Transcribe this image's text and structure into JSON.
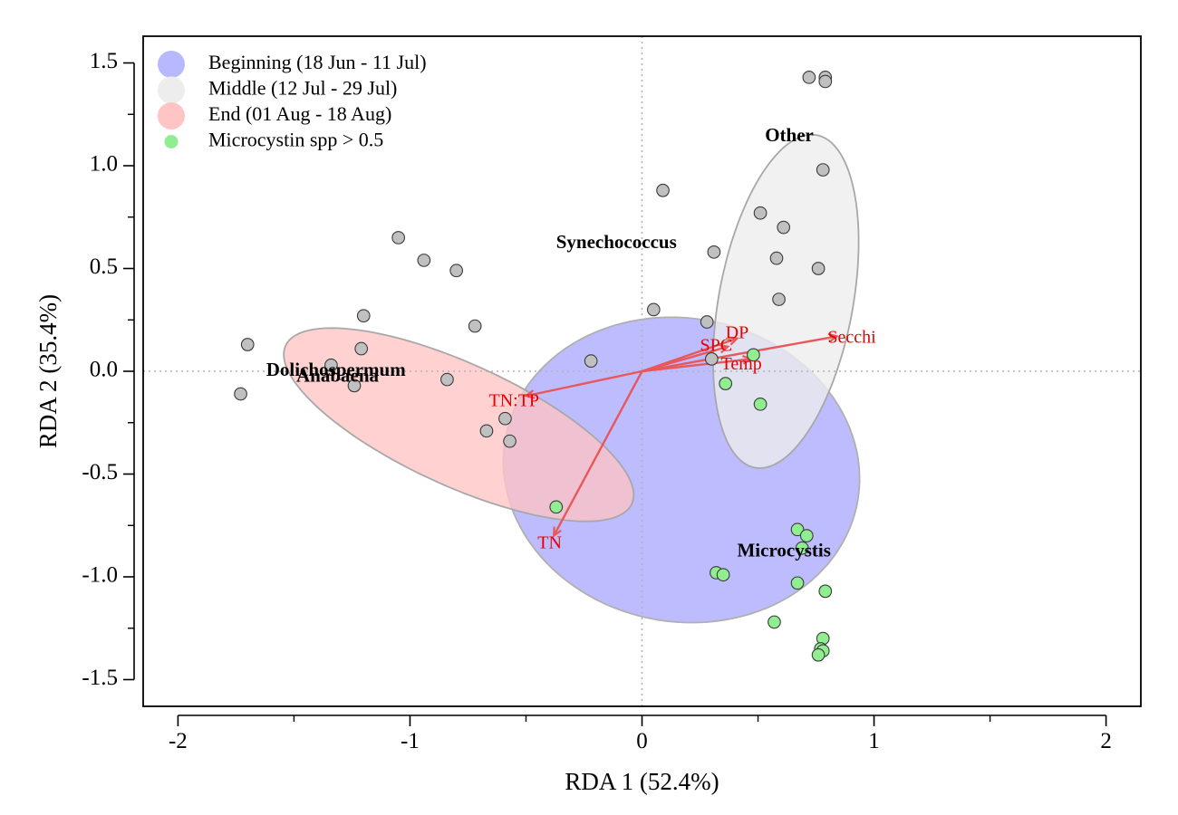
{
  "chart_data": {
    "type": "scatter",
    "xlabel": "RDA 1 (52.4%)",
    "ylabel": "RDA 2 (35.4%)",
    "xlim": [
      -2.15,
      2.15
    ],
    "ylim": [
      -1.63,
      1.63
    ],
    "x_ticks": [
      -2,
      -1,
      0,
      1,
      2
    ],
    "x_tick_labels": [
      "-2",
      "-1",
      "0",
      "1",
      "2"
    ],
    "x_minor_ticks": [
      -1.5,
      -0.5,
      0.5,
      1.5
    ],
    "y_ticks": [
      -1.5,
      -1.0,
      -0.5,
      0.0,
      0.5,
      1.0,
      1.5
    ],
    "y_tick_labels": [
      "-1.5",
      "-1.0",
      "-0.5",
      "0.0",
      "0.5",
      "1.0",
      "1.5"
    ],
    "y_minor_ticks": [
      -1.25,
      -0.75,
      -0.25,
      0.25,
      0.75,
      1.25
    ],
    "reference_lines": {
      "x": 0,
      "y": 0,
      "style": "dotted"
    },
    "legend": {
      "placement": "top-left",
      "entries": [
        {
          "label": "Beginning (18 Jun - 11 Jul)",
          "color": "#b8b8ff",
          "marker": "large-circle"
        },
        {
          "label": "Middle (12 Jul - 29 Jul)",
          "color": "#ededed",
          "marker": "large-circle"
        },
        {
          "label": "End (01 Aug - 18 Aug)",
          "color": "#ffc4c4",
          "marker": "large-circle"
        },
        {
          "label": "Microcystin spp > 0.5",
          "color": "#90ee90",
          "marker": "small-circle"
        }
      ]
    },
    "ellipses": [
      {
        "group": "Beginning (18 Jun - 11 Jul)",
        "center": [
          0.17,
          -0.48
        ],
        "semi_axes": [
          0.78,
          0.73
        ],
        "rotation_deg": -30,
        "fill": "#b8b8ff",
        "stroke": "#b0b0b0"
      },
      {
        "group": "End (01 Aug - 18 Aug)",
        "center": [
          -0.79,
          -0.26
        ],
        "semi_axes": [
          0.84,
          0.29
        ],
        "rotation_deg": -28,
        "fill": "#ffc4c4",
        "stroke": "#a8a8a8"
      },
      {
        "group": "Middle (12 Jul - 29 Jul)",
        "center": [
          0.62,
          0.34
        ],
        "semi_axes": [
          0.82,
          0.29
        ],
        "rotation_deg": 81,
        "fill": "#ededed",
        "stroke": "#a8a8a8"
      }
    ],
    "sites": [
      {
        "x": 0.72,
        "y": 1.43,
        "microcystin": false
      },
      {
        "x": 0.79,
        "y": 1.43,
        "microcystin": false
      },
      {
        "x": 0.79,
        "y": 1.41,
        "microcystin": false
      },
      {
        "x": 0.78,
        "y": 0.98,
        "microcystin": false
      },
      {
        "x": 0.09,
        "y": 0.88,
        "microcystin": false
      },
      {
        "x": 0.51,
        "y": 0.77,
        "microcystin": false
      },
      {
        "x": 0.61,
        "y": 0.7,
        "microcystin": false
      },
      {
        "x": 0.31,
        "y": 0.58,
        "microcystin": false
      },
      {
        "x": 0.58,
        "y": 0.55,
        "microcystin": false
      },
      {
        "x": 0.76,
        "y": 0.5,
        "microcystin": false
      },
      {
        "x": 0.59,
        "y": 0.35,
        "microcystin": false
      },
      {
        "x": 0.05,
        "y": 0.3,
        "microcystin": false
      },
      {
        "x": 0.28,
        "y": 0.24,
        "microcystin": false
      },
      {
        "x": 0.3,
        "y": 0.06,
        "microcystin": false
      },
      {
        "x": -0.22,
        "y": 0.05,
        "microcystin": false
      },
      {
        "x": -1.05,
        "y": 0.65,
        "microcystin": false
      },
      {
        "x": -0.94,
        "y": 0.54,
        "microcystin": false
      },
      {
        "x": -0.8,
        "y": 0.49,
        "microcystin": false
      },
      {
        "x": -1.2,
        "y": 0.27,
        "microcystin": false
      },
      {
        "x": -0.72,
        "y": 0.22,
        "microcystin": false
      },
      {
        "x": -1.7,
        "y": 0.13,
        "microcystin": false
      },
      {
        "x": -1.21,
        "y": 0.11,
        "microcystin": false
      },
      {
        "x": -1.34,
        "y": 0.03,
        "microcystin": false
      },
      {
        "x": -1.24,
        "y": -0.07,
        "microcystin": false
      },
      {
        "x": -0.84,
        "y": -0.04,
        "microcystin": false
      },
      {
        "x": -1.73,
        "y": -0.11,
        "microcystin": false
      },
      {
        "x": -0.59,
        "y": -0.23,
        "microcystin": false
      },
      {
        "x": -0.67,
        "y": -0.29,
        "microcystin": false
      },
      {
        "x": -0.57,
        "y": -0.34,
        "microcystin": false
      },
      {
        "x": 0.48,
        "y": 0.08,
        "microcystin": true
      },
      {
        "x": 0.36,
        "y": -0.06,
        "microcystin": true
      },
      {
        "x": 0.51,
        "y": -0.16,
        "microcystin": true
      },
      {
        "x": -0.37,
        "y": -0.66,
        "microcystin": true
      },
      {
        "x": 0.67,
        "y": -0.77,
        "microcystin": true
      },
      {
        "x": 0.71,
        "y": -0.8,
        "microcystin": true
      },
      {
        "x": 0.69,
        "y": -0.86,
        "microcystin": true
      },
      {
        "x": 0.32,
        "y": -0.98,
        "microcystin": true
      },
      {
        "x": 0.35,
        "y": -0.99,
        "microcystin": true
      },
      {
        "x": 0.67,
        "y": -1.03,
        "microcystin": true
      },
      {
        "x": 0.79,
        "y": -1.07,
        "microcystin": true
      },
      {
        "x": 0.57,
        "y": -1.22,
        "microcystin": true
      },
      {
        "x": 0.78,
        "y": -1.3,
        "microcystin": true
      },
      {
        "x": 0.77,
        "y": -1.35,
        "microcystin": true
      },
      {
        "x": 0.78,
        "y": -1.36,
        "microcystin": true
      },
      {
        "x": 0.76,
        "y": -1.38,
        "microcystin": true
      }
    ],
    "species": [
      {
        "label": "Other",
        "x": 0.53,
        "y": 1.14
      },
      {
        "label": "Synechococcus",
        "x": -0.37,
        "y": 0.62
      },
      {
        "label": "Dolichospermum",
        "x": -1.62,
        "y": 0.0
      },
      {
        "label": "Anabaena",
        "x": -1.49,
        "y": -0.03
      },
      {
        "label": "Microcystis",
        "x": 0.41,
        "y": -0.88
      }
    ],
    "env_vectors": [
      {
        "label": "Secchi",
        "x": 0.84,
        "y": 0.17,
        "label_x": 0.8,
        "label_y": 0.16
      },
      {
        "label": "DP",
        "x": 0.41,
        "y": 0.16,
        "label_x": 0.36,
        "label_y": 0.18
      },
      {
        "label": "SPC",
        "x": 0.37,
        "y": 0.12,
        "label_x": 0.25,
        "label_y": 0.12
      },
      {
        "label": "Temp",
        "x": 0.47,
        "y": 0.06,
        "label_x": 0.34,
        "label_y": 0.03
      },
      {
        "label": "TN:TP",
        "x": -0.5,
        "y": -0.12,
        "label_x": -0.66,
        "label_y": -0.15
      },
      {
        "label": "TN",
        "x": -0.38,
        "y": -0.8,
        "label_x": -0.45,
        "label_y": -0.84
      }
    ],
    "colors": {
      "site_fill": "#c0c0c0",
      "microcystin_fill": "#90ee90",
      "site_stroke": "#3a3a3a",
      "vector": "#e8585a",
      "vector_label": "#e60000",
      "reference_line": "#b4b4b4"
    }
  }
}
